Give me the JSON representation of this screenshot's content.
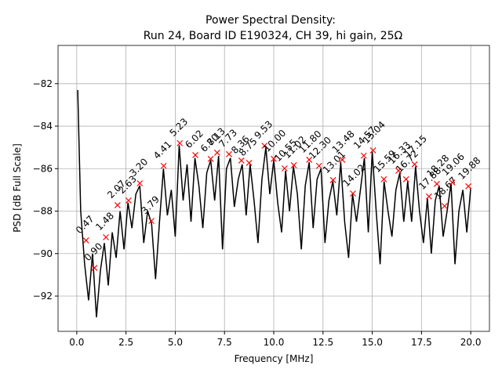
{
  "chart_data": {
    "type": "line",
    "title": "Power Spectral Density:",
    "subtitle": "Run 24, Board ID E190324, CH 39, hi gain, 25Ω",
    "xlabel": "Frequency [MHz]",
    "ylabel": "PSD [dB Full Scale]",
    "xlim": [
      -0.95,
      20.95
    ],
    "ylim": [
      -93.66,
      -80.2
    ],
    "grid": true,
    "xticks": [
      {
        "value": 0,
        "label": "0.0"
      },
      2.5,
      {
        "value": 5,
        "label": "5.0"
      },
      7.5,
      {
        "value": 10,
        "label": "10.0"
      },
      12.5,
      {
        "value": 15,
        "label": "15.0"
      },
      17.5,
      {
        "value": 20,
        "label": "20.0"
      }
    ],
    "yticks": [
      {
        "value": -92,
        "label": "−92"
      },
      {
        "value": -90,
        "label": "−90"
      },
      {
        "value": -88,
        "label": "−88"
      },
      {
        "value": -86,
        "label": "−86"
      },
      {
        "value": -84,
        "label": "−84"
      },
      {
        "value": -82,
        "label": "−82"
      }
    ],
    "series": [
      {
        "color": "#000000",
        "x": [
          0.05,
          0.2,
          0.4,
          0.6,
          0.8,
          1.0,
          1.2,
          1.4,
          1.6,
          1.8,
          2.0,
          2.2,
          2.4,
          2.6,
          2.8,
          3.0,
          3.2,
          3.4,
          3.6,
          3.8,
          4.0,
          4.2,
          4.4,
          4.6,
          4.8,
          5.0,
          5.2,
          5.4,
          5.6,
          5.8,
          6.0,
          6.2,
          6.4,
          6.6,
          6.8,
          7.0,
          7.2,
          7.4,
          7.6,
          7.8,
          8.0,
          8.2,
          8.4,
          8.6,
          8.8,
          9.0,
          9.2,
          9.4,
          9.6,
          9.8,
          10.0,
          10.2,
          10.4,
          10.6,
          10.8,
          11.0,
          11.2,
          11.4,
          11.6,
          11.8,
          12.0,
          12.2,
          12.4,
          12.6,
          12.8,
          13.0,
          13.2,
          13.4,
          13.6,
          13.8,
          14.0,
          14.2,
          14.4,
          14.6,
          14.8,
          15.0,
          15.2,
          15.4,
          15.6,
          15.8,
          16.0,
          16.2,
          16.4,
          16.6,
          16.8,
          17.0,
          17.2,
          17.4,
          17.6,
          17.8,
          18.0,
          18.2,
          18.4,
          18.6,
          18.8,
          19.0,
          19.2,
          19.4,
          19.6,
          19.8,
          20.0
        ],
        "values": [
          -82.3,
          -88.0,
          -90.5,
          -92.2,
          -90.0,
          -93.0,
          -90.8,
          -89.5,
          -91.5,
          -89.0,
          -90.2,
          -88.0,
          -89.8,
          -87.6,
          -88.8,
          -87.2,
          -86.8,
          -89.5,
          -88.0,
          -88.6,
          -91.2,
          -88.5,
          -86.0,
          -88.2,
          -87.0,
          -89.2,
          -84.9,
          -87.5,
          -85.8,
          -88.5,
          -85.5,
          -86.8,
          -88.8,
          -86.2,
          -85.6,
          -87.5,
          -85.4,
          -89.8,
          -86.0,
          -85.5,
          -87.8,
          -86.5,
          -85.8,
          -88.2,
          -85.8,
          -87.5,
          -89.5,
          -86.5,
          -85.0,
          -87.2,
          -85.6,
          -87.6,
          -89.0,
          -86.1,
          -88.0,
          -85.9,
          -87.2,
          -89.8,
          -86.8,
          -85.7,
          -88.8,
          -86.5,
          -86.0,
          -89.5,
          -87.5,
          -86.6,
          -88.2,
          -85.7,
          -88.5,
          -90.2,
          -87.2,
          -88.5,
          -87.0,
          -85.5,
          -89.0,
          -85.2,
          -88.0,
          -90.5,
          -86.6,
          -88.0,
          -89.2,
          -87.0,
          -86.2,
          -88.5,
          -86.6,
          -88.5,
          -85.9,
          -88.0,
          -89.5,
          -87.4,
          -90.0,
          -87.5,
          -86.8,
          -89.2,
          -88.0,
          -86.7,
          -90.5,
          -88.0,
          -87.0,
          -89.0,
          -86.9
        ]
      }
    ],
    "peaks": {
      "color": "#ff0000",
      "x": [
        0.47,
        0.9,
        1.48,
        2.07,
        2.63,
        3.2,
        3.79,
        4.41,
        5.23,
        6.02,
        6.8,
        7.13,
        7.73,
        8.36,
        8.75,
        9.53,
        10.0,
        10.55,
        11.02,
        11.8,
        12.3,
        13.01,
        13.48,
        14.02,
        14.57,
        15.04,
        15.59,
        16.33,
        16.72,
        17.15,
        17.88,
        18.28,
        18.67,
        19.06,
        19.88
      ],
      "labels": [
        "0.47",
        "0.90",
        "1.48",
        "2.07",
        "2.63",
        "3.20",
        "3.79",
        "4.41",
        "5.23",
        "6.02",
        "6.80",
        "7.13",
        "7.73",
        "8.36",
        "8.75",
        "9.53",
        "10.00",
        "10.55",
        "11.02",
        "11.80",
        "12.30",
        "13.01",
        "13.48",
        "14.02",
        "14.57",
        "15.04",
        "15.59",
        "16.33",
        "16.72",
        "17.15",
        "17.88",
        "18.28",
        "18.67",
        "19.06",
        "19.88"
      ],
      "values": [
        -89.38,
        -90.67,
        -89.23,
        -87.72,
        -87.5,
        -86.69,
        -88.46,
        -85.87,
        -84.8,
        -85.36,
        -85.54,
        -85.25,
        -85.32,
        -85.62,
        -85.73,
        -84.92,
        -85.54,
        -85.99,
        -85.84,
        -85.58,
        -85.87,
        -86.54,
        -85.58,
        -87.17,
        -85.39,
        -85.14,
        -86.5,
        -86.1,
        -86.5,
        -85.8,
        -87.31,
        -86.72,
        -87.76,
        -86.65,
        -86.83
      ]
    }
  }
}
